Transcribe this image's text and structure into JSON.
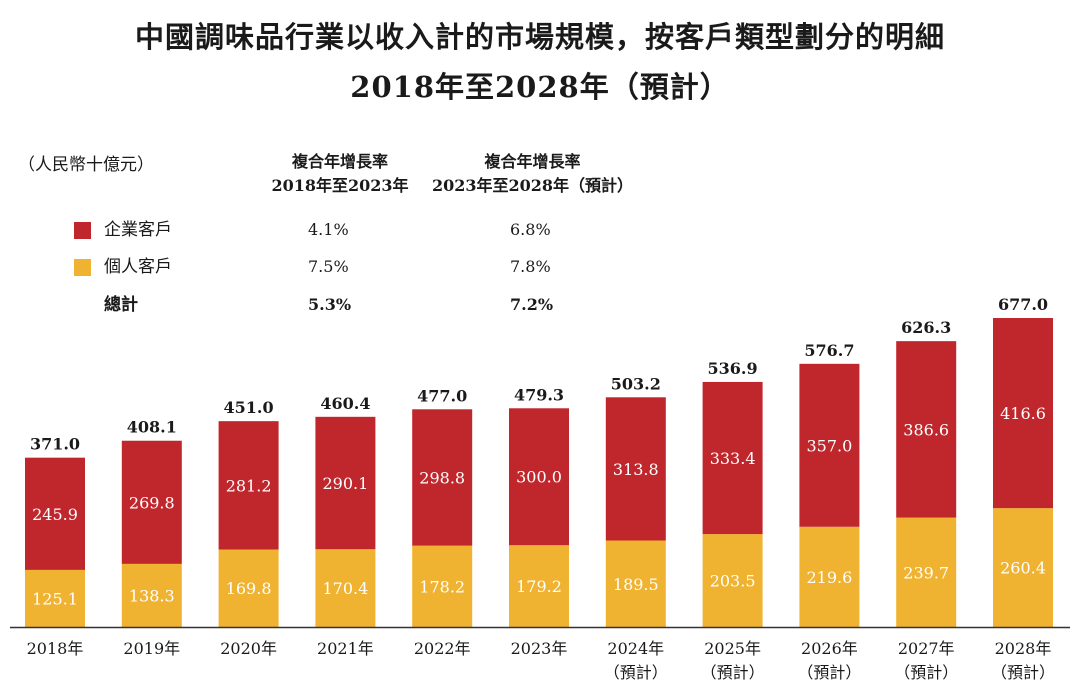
{
  "title_line1": "中國調味品行業以收入計的市場規模，按客戶類型劃分的明細",
  "title_line2": "2018年至2028年（預計）",
  "unit": "（人民幣十億元）",
  "cagr": {
    "header1_line1": "複合年增長率",
    "header1_line2": "2018年至2023年",
    "header2_line1": "複合年增長率",
    "header2_line2": "2023年至2028年（預計）",
    "rows": [
      {
        "label": "企業客戶",
        "c1": "4.1%",
        "c2": "6.8%"
      },
      {
        "label": "個人客戶",
        "c1": "7.5%",
        "c2": "7.8%"
      },
      {
        "label": "總計",
        "c1": "5.3%",
        "c2": "7.2%"
      }
    ]
  },
  "colors": {
    "enterprise": "#c0272d",
    "individual": "#f0b331"
  },
  "chart_data": {
    "type": "bar",
    "stacked": true,
    "categories": [
      "2018年",
      "2019年",
      "2020年",
      "2021年",
      "2022年",
      "2023年",
      "2024年",
      "2025年",
      "2026年",
      "2027年",
      "2028年"
    ],
    "category_sublabels": [
      "",
      "",
      "",
      "",
      "",
      "",
      "（預計）",
      "（預計）",
      "（預計）",
      "（預計）",
      "（預計）"
    ],
    "series": [
      {
        "name": "個人客戶",
        "values": [
          125.1,
          138.3,
          169.8,
          170.4,
          178.2,
          179.2,
          189.5,
          203.5,
          219.6,
          239.7,
          260.4
        ]
      },
      {
        "name": "企業客戶",
        "values": [
          245.9,
          269.8,
          281.2,
          290.1,
          298.8,
          300.0,
          313.8,
          333.4,
          357.0,
          386.6,
          416.6
        ]
      }
    ],
    "totals": [
      371.0,
      408.1,
      451.0,
      460.4,
      477.0,
      479.3,
      503.2,
      536.9,
      576.7,
      626.3,
      677.0
    ],
    "value_labels_individual": [
      "125.1",
      "138.3",
      "169.8",
      "170.4",
      "178.2",
      "179.2",
      "189.5",
      "203.5",
      "219.6",
      "239.7",
      "260.4"
    ],
    "value_labels_enterprise": [
      "245.9",
      "269.8",
      "281.2",
      "290.1",
      "298.8",
      "300.0",
      "313.8",
      "333.4",
      "357.0",
      "386.6",
      "416.6"
    ],
    "value_labels_total": [
      "371.0",
      "408.1",
      "451.0",
      "460.4",
      "477.0",
      "479.3",
      "503.2",
      "536.9",
      "576.7",
      "626.3",
      "677.0"
    ],
    "ylim": [
      0,
      677.0
    ],
    "grid": false,
    "legend": "top-left"
  }
}
